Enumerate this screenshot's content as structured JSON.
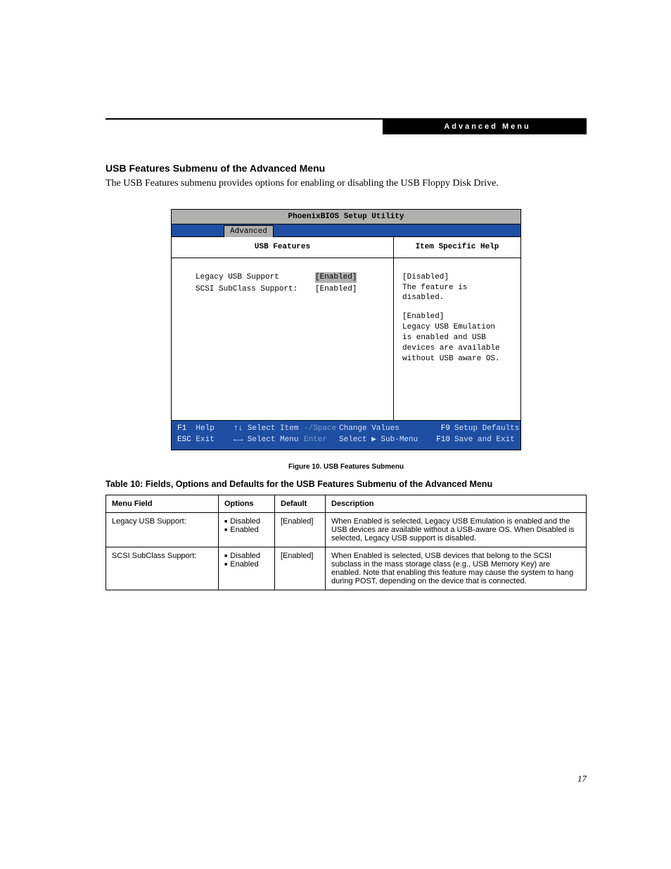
{
  "header_label": "Advanced Menu",
  "section_title": "USB Features Submenu of the Advanced Menu",
  "intro": "The USB Features submenu provides options for enabling or disabling the USB Floppy Disk Drive.",
  "bios": {
    "title": "PhoenixBIOS Setup Utility",
    "tab": "Advanced",
    "left_header": "USB Features",
    "right_header": "Item Specific Help",
    "settings": [
      {
        "label": "Legacy USB Support",
        "value": "[Enabled]",
        "selected": true
      },
      {
        "label": "SCSI SubClass Support:",
        "value": "[Enabled]",
        "selected": false
      }
    ],
    "help": {
      "disabled_label": "[Disabled]",
      "disabled_text": "The feature is disabled.",
      "enabled_label": "[Enabled]",
      "enabled_lines": [
        "Legacy USB Emulation",
        "is enabled and USB",
        "devices are available",
        "without USB aware OS."
      ]
    },
    "footer": {
      "row1": {
        "k1": "F1",
        "t1": "Help",
        "k2": "↑↓",
        "t2": "Select Item",
        "k3": "-/Space",
        "t3": "Change Values",
        "k4": "F9",
        "t4": "Setup Defaults"
      },
      "row2": {
        "k1": "ESC",
        "t1": "Exit",
        "k2": "←→",
        "t2": "Select Menu",
        "k3": "Enter",
        "t3": "Select ▶ Sub-Menu",
        "k4": "F10",
        "t4": "Save and Exit"
      }
    }
  },
  "figure_caption": "Figure 10.  USB Features Submenu",
  "table_title": "Table 10: Fields, Options and Defaults for the USB Features Submenu of the Advanced Menu",
  "table": {
    "columns": [
      "Menu Field",
      "Options",
      "Default",
      "Description"
    ],
    "rows": [
      {
        "field": "Legacy USB Support:",
        "options": [
          "Disabled",
          "Enabled"
        ],
        "default": "[Enabled]",
        "desc": "When Enabled is selected, Legacy USB Emulation is enabled and the USB devices are available without a USB-aware OS. When Disabled is selected, Legacy USB support is disabled."
      },
      {
        "field": "SCSI SubClass Support:",
        "options": [
          "Disabled",
          "Enabled"
        ],
        "default": "[Enabled]",
        "desc": "When Enabled is selected, USB devices that belong to the SCSI subclass in the mass storage class (e.g., USB Memory Key) are enabled. Note that enabling this feature may cause the system to hang during POST, depending on the device that is connected."
      }
    ]
  },
  "page_number": "17"
}
